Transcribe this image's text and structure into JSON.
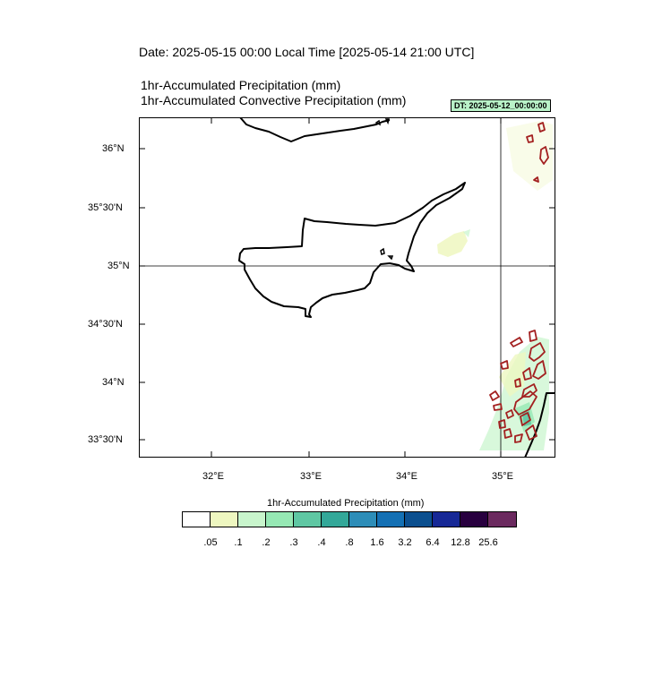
{
  "header": {
    "date_line": "Date: 2025-05-15  00:00 Local Time [2025-05-14  21:00 UTC]",
    "line1": "1hr-Accumulated Precipitation   (mm)",
    "line2": "1hr-Accumulated Convective Precipitation   (mm)",
    "dt_badge": "DT: 2025-05-12_00:00:00"
  },
  "map": {
    "lon_ticks": [
      "32°E",
      "33°E",
      "34°E",
      "35°E"
    ],
    "lat_ticks": [
      "36°N",
      "35°30'N",
      "35°N",
      "34°30'N",
      "34°N",
      "33°30'N"
    ],
    "grid_lines": [
      "35°N",
      "35°E"
    ],
    "land_outline_color": "#000000",
    "convective_contour_color": "#a32020"
  },
  "colorbar": {
    "title": "1hr-Accumulated Precipitation  (mm)",
    "colors": [
      "#ffffff",
      "#eef7c0",
      "#c8f5cc",
      "#96e8b4",
      "#5fc7a3",
      "#33a899",
      "#2d8db8",
      "#1470b4",
      "#0b4f8f",
      "#162896",
      "#28003f",
      "#6b2a5f"
    ],
    "labels": [
      ".05",
      ".1",
      ".2",
      ".3",
      ".4",
      ".8",
      "1.6",
      "3.2",
      "6.4",
      "12.8",
      "25.6"
    ]
  }
}
